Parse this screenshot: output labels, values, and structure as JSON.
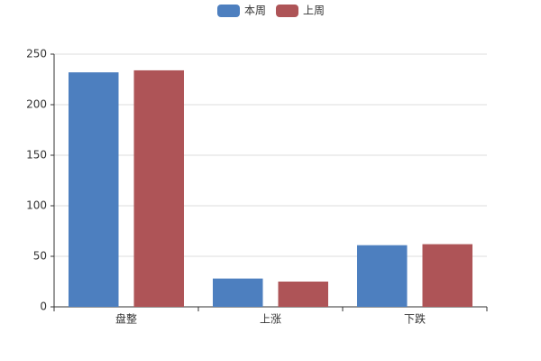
{
  "chart_data": {
    "type": "bar",
    "categories": [
      "盘整",
      "上涨",
      "下跌"
    ],
    "series": [
      {
        "name": "本周",
        "color": "#4d7fbf",
        "values": [
          232,
          28,
          61
        ]
      },
      {
        "name": "上周",
        "color": "#ae5457",
        "values": [
          234,
          25,
          62
        ]
      }
    ],
    "ylim": [
      0,
      250
    ],
    "yticks": [
      0,
      50,
      100,
      150,
      200,
      250
    ],
    "grid": true,
    "legend": "top"
  }
}
